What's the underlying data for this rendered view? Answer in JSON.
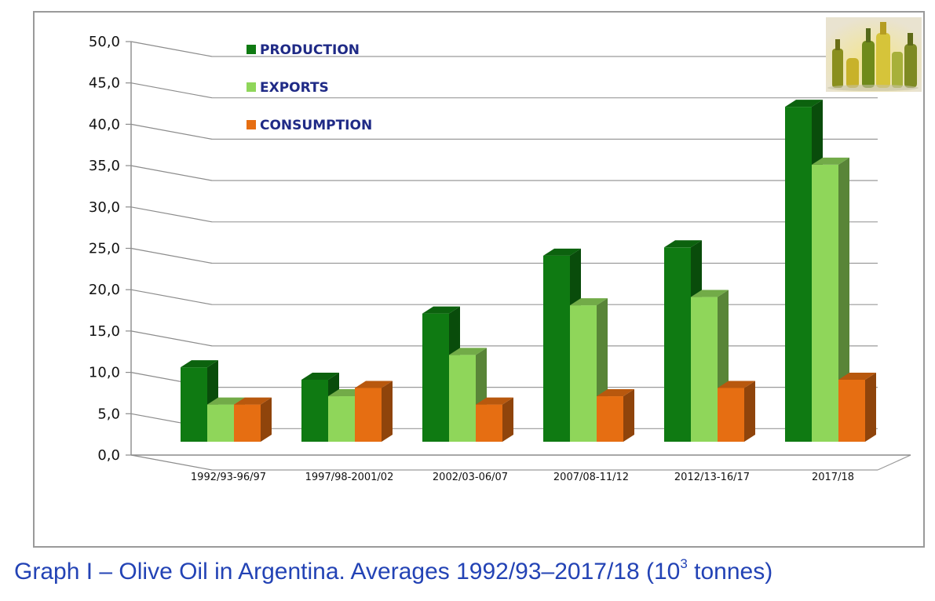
{
  "caption": {
    "text": "Graph I – Olive Oil in Argentina. Averages 1992/93–2017/18 (10",
    "superscript": "3",
    "suffix": " tonnes)",
    "color": "#2343b5"
  },
  "thumbnail": {
    "icon": "olive-oil-bottles-photo"
  },
  "chart_data": {
    "type": "bar",
    "categories": [
      "1992/93-96/97",
      "1997/98-2001/02",
      "2002/03-06/07",
      "2007/08-11/12",
      "2012/13-16/17",
      "2017/18"
    ],
    "series": [
      {
        "name": "PRODUCTION",
        "color": "#0f7a12",
        "values": [
          9.0,
          7.5,
          15.5,
          22.5,
          23.5,
          40.5
        ]
      },
      {
        "name": "EXPORTS",
        "color": "#8fd65a",
        "values": [
          4.5,
          5.5,
          10.5,
          16.5,
          17.5,
          33.5
        ]
      },
      {
        "name": "CONSUMPTION",
        "color": "#e66e12",
        "values": [
          4.5,
          6.5,
          4.5,
          5.5,
          6.5,
          7.5
        ]
      }
    ],
    "ylim": [
      0,
      50
    ],
    "yticks": [
      "0,0",
      "5,0",
      "10,0",
      "15,0",
      "20,0",
      "25,0",
      "30,0",
      "35,0",
      "40,0",
      "45,0",
      "50,0"
    ],
    "ytick_values": [
      0,
      5,
      10,
      15,
      20,
      25,
      30,
      35,
      40,
      45,
      50
    ],
    "grid": true,
    "legend_position": "top-left",
    "style": "3d-clustered-column"
  }
}
